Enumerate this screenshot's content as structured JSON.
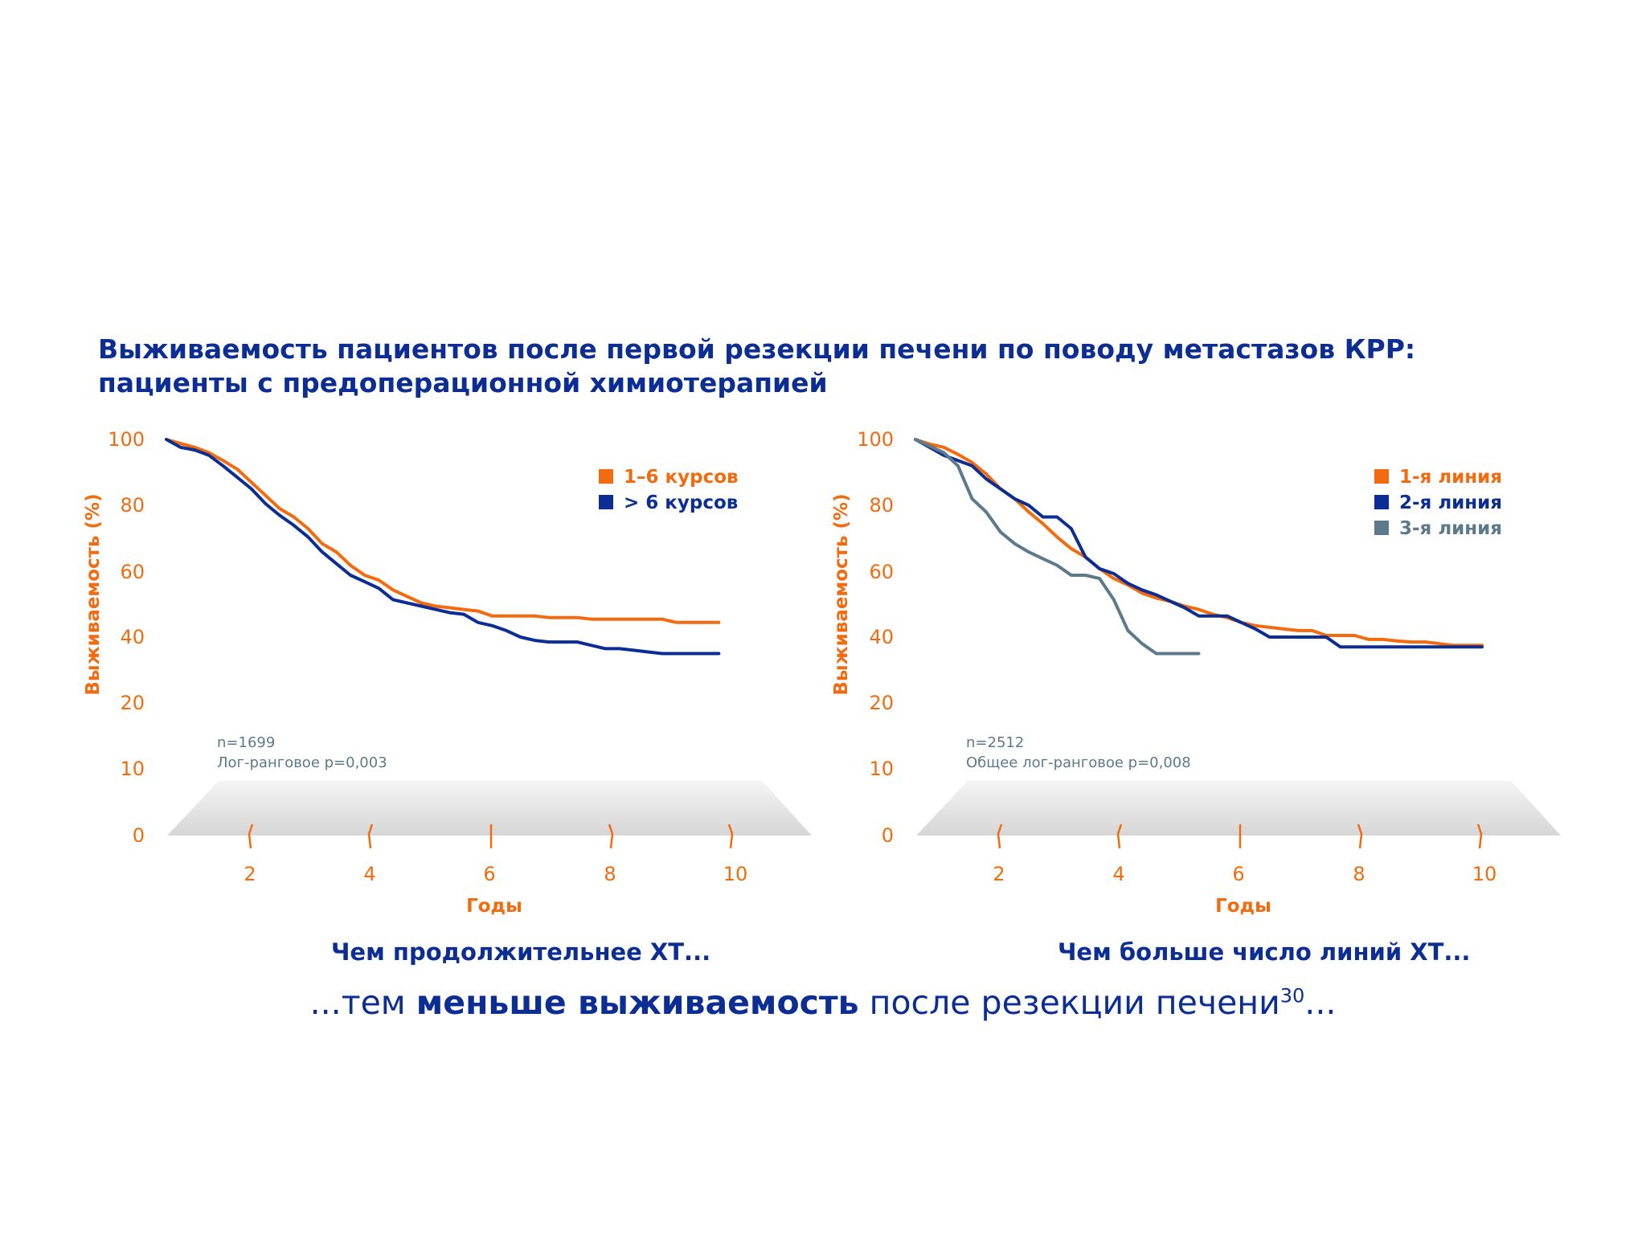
{
  "title_line1": "Выживаемость пациентов после первой резекции печени по поводу метастазов КРР:",
  "title_line2": "пациенты с предоперационной химиотерапией",
  "caption_left": "Чем продолжительнее ХТ...",
  "caption_right": "Чем больше число линий ХТ...",
  "conclusion": {
    "prefix": "...тем ",
    "bold": "меньше выживаемость",
    "suffix": " после резекции печени",
    "sup": "30",
    "end": "..."
  },
  "colors": {
    "orange": "#f26b0f",
    "blue": "#0b2d94",
    "grey": "#5d7a8c"
  },
  "chart_data": [
    {
      "type": "line",
      "ylabel": "Выживаемость (%)",
      "xlabel": "Годы",
      "yticks": [
        "100",
        "80",
        "60",
        "40",
        "20",
        "10",
        "0"
      ],
      "xticks": [
        "2",
        "4",
        "6",
        "8",
        "10"
      ],
      "note_n": "n=1699",
      "note_p": "Лог-ранговое p=0,003",
      "series": [
        {
          "name": "1–6 курсов",
          "color": "#f26b0f",
          "points": [
            [
              0,
              100
            ],
            [
              0.25,
              98.8
            ],
            [
              0.5,
              97.6
            ],
            [
              0.75,
              96
            ],
            [
              1,
              93.6
            ],
            [
              1.25,
              91
            ],
            [
              1.5,
              87
            ],
            [
              1.75,
              83
            ],
            [
              2,
              79
            ],
            [
              2.25,
              76.5
            ],
            [
              2.5,
              73
            ],
            [
              2.75,
              68.5
            ],
            [
              3,
              66
            ],
            [
              3.25,
              62
            ],
            [
              3.5,
              59
            ],
            [
              3.75,
              57.5
            ],
            [
              4,
              54.5
            ],
            [
              4.25,
              52.5
            ],
            [
              4.5,
              50.5
            ],
            [
              4.75,
              49.5
            ],
            [
              5,
              49
            ],
            [
              5.25,
              48.5
            ],
            [
              5.5,
              48
            ],
            [
              5.75,
              46.5
            ],
            [
              6,
              46.5
            ],
            [
              6.5,
              46.5
            ],
            [
              6.75,
              46
            ],
            [
              7,
              46
            ],
            [
              7.25,
              46
            ],
            [
              7.5,
              45.5
            ],
            [
              8,
              45.5
            ],
            [
              8.5,
              45.5
            ],
            [
              8.75,
              45.5
            ],
            [
              9,
              44.5
            ],
            [
              9.5,
              44.5
            ],
            [
              9.75,
              44.5
            ]
          ]
        },
        {
          "name": "> 6 курсов",
          "color": "#0b2d94",
          "points": [
            [
              0,
              100
            ],
            [
              0.25,
              97.6
            ],
            [
              0.5,
              96.8
            ],
            [
              0.75,
              95.2
            ],
            [
              1,
              92
            ],
            [
              1.25,
              88.5
            ],
            [
              1.5,
              85
            ],
            [
              1.75,
              80.5
            ],
            [
              2,
              77
            ],
            [
              2.25,
              74
            ],
            [
              2.5,
              70.5
            ],
            [
              2.75,
              66
            ],
            [
              3,
              62.5
            ],
            [
              3.25,
              59
            ],
            [
              3.5,
              57
            ],
            [
              3.75,
              55
            ],
            [
              4,
              51.5
            ],
            [
              4.25,
              50.5
            ],
            [
              4.5,
              49.5
            ],
            [
              4.75,
              48.5
            ],
            [
              5,
              47.5
            ],
            [
              5.25,
              47
            ],
            [
              5.5,
              44.5
            ],
            [
              5.75,
              43.5
            ],
            [
              6,
              42
            ],
            [
              6.25,
              40
            ],
            [
              6.5,
              39
            ],
            [
              6.75,
              38.5
            ],
            [
              7,
              38.5
            ],
            [
              7.25,
              38.5
            ],
            [
              7.5,
              37.5
            ],
            [
              7.75,
              36.5
            ],
            [
              8,
              36.5
            ],
            [
              8.25,
              36
            ],
            [
              8.5,
              35.5
            ],
            [
              8.75,
              35
            ],
            [
              9,
              35
            ],
            [
              9.5,
              35
            ],
            [
              9.75,
              35
            ]
          ]
        }
      ]
    },
    {
      "type": "line",
      "ylabel": "Выживаемость (%)",
      "xlabel": "Годы",
      "yticks": [
        "100",
        "80",
        "60",
        "40",
        "20",
        "10",
        "0"
      ],
      "xticks": [
        "2",
        "4",
        "6",
        "8",
        "10"
      ],
      "note_n": "n=2512",
      "note_p": "Общее лог-ранговое p=0,008",
      "series": [
        {
          "name": "1-я линия",
          "color": "#f26b0f",
          "points": [
            [
              0,
              100
            ],
            [
              0.25,
              98.6
            ],
            [
              0.5,
              97.6
            ],
            [
              0.75,
              95.5
            ],
            [
              1,
              93
            ],
            [
              1.25,
              89.5
            ],
            [
              1.5,
              85
            ],
            [
              1.75,
              82
            ],
            [
              2,
              78
            ],
            [
              2.25,
              74.5
            ],
            [
              2.5,
              70.5
            ],
            [
              2.75,
              67
            ],
            [
              3,
              64.5
            ],
            [
              3.25,
              61
            ],
            [
              3.5,
              58
            ],
            [
              3.75,
              56
            ],
            [
              4,
              53.5
            ],
            [
              4.25,
              52
            ],
            [
              4.5,
              51
            ],
            [
              4.75,
              49.5
            ],
            [
              5,
              48.5
            ],
            [
              5.25,
              47
            ],
            [
              5.5,
              46
            ],
            [
              5.75,
              44.5
            ],
            [
              6,
              43.5
            ],
            [
              6.25,
              43
            ],
            [
              6.5,
              42.5
            ],
            [
              6.75,
              42
            ],
            [
              7,
              42
            ],
            [
              7.25,
              40.5
            ],
            [
              7.5,
              40.5
            ],
            [
              7.75,
              40.5
            ],
            [
              8,
              39.3
            ],
            [
              8.25,
              39.3
            ],
            [
              8.5,
              38.8
            ],
            [
              8.75,
              38.5
            ],
            [
              9,
              38.5
            ],
            [
              9.25,
              38
            ],
            [
              9.5,
              37.5
            ],
            [
              9.75,
              37.5
            ],
            [
              10,
              37.5
            ]
          ]
        },
        {
          "name": "2-я линия",
          "color": "#0b2d94",
          "points": [
            [
              0,
              100
            ],
            [
              0.25,
              97.6
            ],
            [
              0.5,
              95.2
            ],
            [
              0.75,
              93.6
            ],
            [
              1,
              92
            ],
            [
              1.25,
              88
            ],
            [
              1.5,
              85
            ],
            [
              1.75,
              82
            ],
            [
              2,
              80
            ],
            [
              2.25,
              76.5
            ],
            [
              2.5,
              76.5
            ],
            [
              2.75,
              73
            ],
            [
              3,
              64.5
            ],
            [
              3.25,
              61
            ],
            [
              3.5,
              59.5
            ],
            [
              3.75,
              56.5
            ],
            [
              4,
              54.5
            ],
            [
              4.25,
              53
            ],
            [
              4.5,
              51
            ],
            [
              4.75,
              49
            ],
            [
              5,
              46.5
            ],
            [
              5.25,
              46.5
            ],
            [
              5.5,
              46.5
            ],
            [
              5.75,
              44.5
            ],
            [
              6,
              42.5
            ],
            [
              6.25,
              40
            ],
            [
              6.5,
              40
            ],
            [
              6.75,
              40
            ],
            [
              7,
              40
            ],
            [
              7.25,
              40
            ],
            [
              7.5,
              37
            ],
            [
              7.75,
              37
            ],
            [
              8,
              37
            ],
            [
              8.5,
              37
            ],
            [
              9,
              37
            ],
            [
              9.5,
              37
            ],
            [
              10,
              37
            ]
          ]
        },
        {
          "name": "3-я линия",
          "color": "#5d7a8c",
          "points": [
            [
              0,
              100
            ],
            [
              0.5,
              96
            ],
            [
              0.75,
              92
            ],
            [
              1,
              82
            ],
            [
              1.25,
              78
            ],
            [
              1.5,
              72
            ],
            [
              1.75,
              68.5
            ],
            [
              2,
              66
            ],
            [
              2.25,
              64
            ],
            [
              2.5,
              62
            ],
            [
              2.75,
              59
            ],
            [
              3,
              59
            ],
            [
              3.25,
              58
            ],
            [
              3.5,
              51.5
            ],
            [
              3.75,
              42
            ],
            [
              4,
              38
            ],
            [
              4.25,
              35
            ],
            [
              4.5,
              35
            ],
            [
              4.75,
              35
            ],
            [
              5,
              35
            ]
          ]
        }
      ]
    }
  ]
}
